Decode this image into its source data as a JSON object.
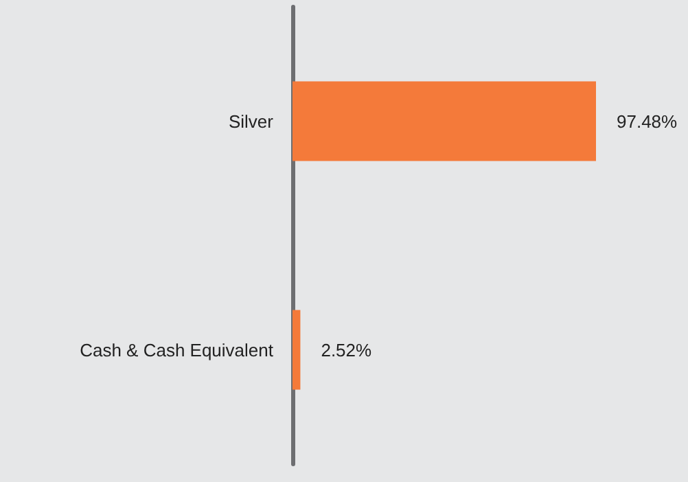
{
  "chart_data": {
    "type": "bar",
    "orientation": "horizontal",
    "categories": [
      "Silver",
      "Cash & Cash Equivalent"
    ],
    "values": [
      97.48,
      2.52
    ],
    "color": "#f47a3a",
    "value_labels": [
      "97.48%",
      "2.52%"
    ]
  }
}
